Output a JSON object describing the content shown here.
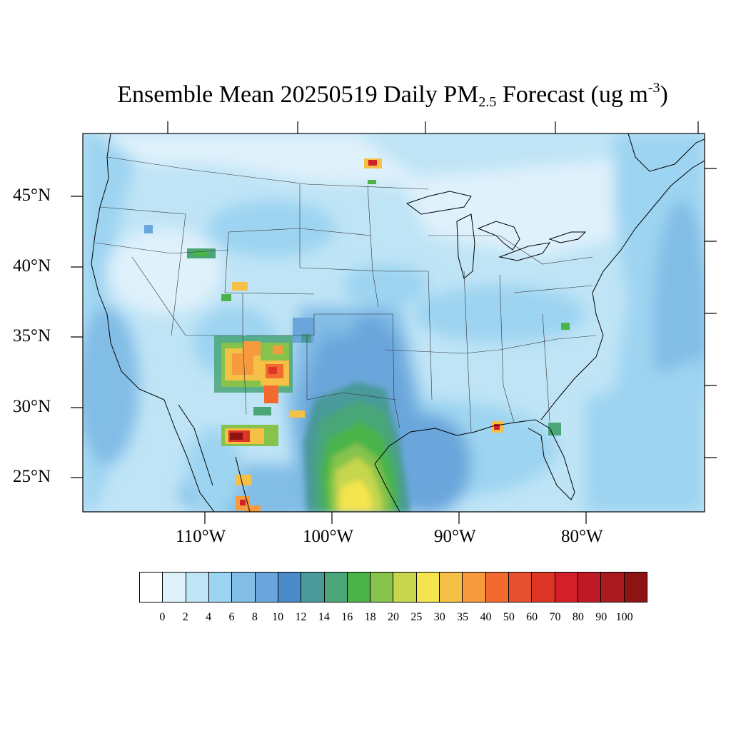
{
  "title": {
    "prefix": "Ensemble Mean 20250519 Daily PM",
    "subscript": "2.5",
    "middle": " Forecast (ug m",
    "superscript": "-3",
    "suffix": ")"
  },
  "axes": {
    "lat_labels": [
      "45°N",
      "40°N",
      "35°N",
      "30°N",
      "25°N"
    ],
    "lon_labels": [
      "110°W",
      "100°W",
      "90°W",
      "80°W"
    ]
  },
  "colorbar": {
    "labels": [
      "0",
      "2",
      "4",
      "6",
      "8",
      "10",
      "12",
      "14",
      "16",
      "18",
      "20",
      "25",
      "30",
      "35",
      "40",
      "50",
      "60",
      "70",
      "80",
      "90",
      "100"
    ],
    "colors": [
      "#ffffff",
      "#dff1fb",
      "#bfe4f6",
      "#9dd4f1",
      "#82bde6",
      "#6aa6db",
      "#4a8ac8",
      "#4a9a9a",
      "#4aa678",
      "#4ab44a",
      "#86c24c",
      "#c6d64e",
      "#f4e44e",
      "#f6bf45",
      "#f59a3d",
      "#f26a30",
      "#e7502e",
      "#de3626",
      "#d31f2a",
      "#bf1a24",
      "#a81a1e",
      "#8e1414"
    ]
  }
}
